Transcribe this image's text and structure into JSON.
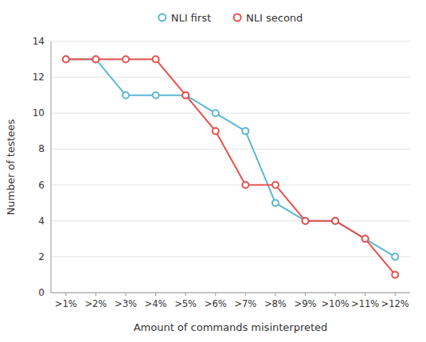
{
  "chart_data": {
    "type": "line",
    "categories": [
      ">1%",
      ">2%",
      ">3%",
      ">4%",
      ">5%",
      ">6%",
      ">7%",
      ">8%",
      ">9%",
      ">10%",
      ">11%",
      ">12%"
    ],
    "series": [
      {
        "name": "NLI first",
        "color": "#5BB8D4",
        "values": [
          13,
          13,
          11,
          11,
          11,
          10,
          9,
          5,
          4,
          4,
          3,
          2
        ]
      },
      {
        "name": "NLI second",
        "color": "#E8504A",
        "values": [
          13,
          13,
          13,
          13,
          11,
          9,
          6,
          6,
          4,
          4,
          3,
          1
        ]
      }
    ],
    "xlabel": "Amount of commands misinterpreted",
    "ylabel": "Number of testees",
    "ylim": [
      0,
      14
    ],
    "yticks": [
      0,
      2,
      4,
      6,
      8,
      10,
      12,
      14
    ],
    "grid": true,
    "marker": "circle",
    "legend": "top"
  }
}
